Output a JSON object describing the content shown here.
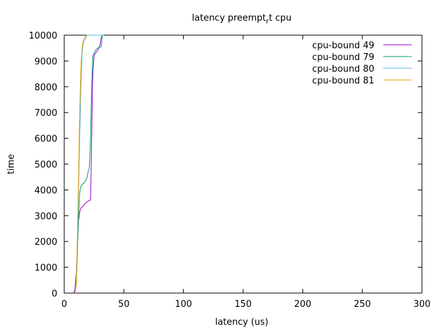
{
  "chart_data": {
    "type": "line",
    "title": "latency preempt",
    "title_sub": "r",
    "title_tail": "t cpu",
    "xlabel": "latency (us)",
    "ylabel": "time",
    "xlim": [
      0,
      300
    ],
    "ylim": [
      0,
      10000
    ],
    "xticks": [
      0,
      50,
      100,
      150,
      200,
      250,
      300
    ],
    "yticks": [
      0,
      1000,
      2000,
      3000,
      4000,
      5000,
      6000,
      7000,
      8000,
      9000,
      10000
    ],
    "grid": false,
    "legend_position": "top-right",
    "series": [
      {
        "name": "cpu-bound 49",
        "color": "#9400d3",
        "points": [
          [
            8,
            0
          ],
          [
            9,
            150
          ],
          [
            10,
            700
          ],
          [
            11,
            1800
          ],
          [
            12,
            2800
          ],
          [
            13,
            3150
          ],
          [
            14,
            3300
          ],
          [
            16,
            3380
          ],
          [
            18,
            3500
          ],
          [
            20,
            3560
          ],
          [
            21,
            3600
          ],
          [
            22,
            3600
          ],
          [
            22.5,
            4500
          ],
          [
            23,
            6000
          ],
          [
            23.5,
            7500
          ],
          [
            24,
            8500
          ],
          [
            25,
            9200
          ],
          [
            26,
            9300
          ],
          [
            28,
            9400
          ],
          [
            30,
            9600
          ],
          [
            31,
            9900
          ],
          [
            32,
            10000
          ]
        ]
      },
      {
        "name": "cpu-bound 79",
        "color": "#009e73",
        "points": [
          [
            9,
            0
          ],
          [
            10,
            300
          ],
          [
            11,
            1500
          ],
          [
            12,
            3000
          ],
          [
            13,
            3900
          ],
          [
            14,
            4150
          ],
          [
            16,
            4250
          ],
          [
            18,
            4350
          ],
          [
            19,
            4450
          ],
          [
            20,
            4700
          ],
          [
            21,
            4850
          ],
          [
            22,
            6000
          ],
          [
            23,
            8000
          ],
          [
            24,
            9200
          ],
          [
            26,
            9400
          ],
          [
            28,
            9500
          ],
          [
            31,
            9550
          ],
          [
            32,
            10000
          ]
        ]
      },
      {
        "name": "cpu-bound 80",
        "color": "#56b4e9",
        "points": [
          [
            9,
            0
          ],
          [
            10,
            400
          ],
          [
            11,
            2000
          ],
          [
            12,
            4000
          ],
          [
            13,
            6000
          ],
          [
            14,
            8000
          ],
          [
            15,
            9300
          ],
          [
            16,
            9700
          ],
          [
            18,
            9900
          ],
          [
            19,
            10000
          ],
          [
            30,
            10000
          ],
          [
            33,
            10000
          ]
        ]
      },
      {
        "name": "cpu-bound 81",
        "color": "#e69f00",
        "points": [
          [
            9,
            0
          ],
          [
            10,
            300
          ],
          [
            11,
            2000
          ],
          [
            12,
            4500
          ],
          [
            13,
            7000
          ],
          [
            14,
            8800
          ],
          [
            15,
            9500
          ],
          [
            16,
            9800
          ],
          [
            18,
            9950
          ],
          [
            19,
            10000
          ]
        ]
      }
    ]
  }
}
